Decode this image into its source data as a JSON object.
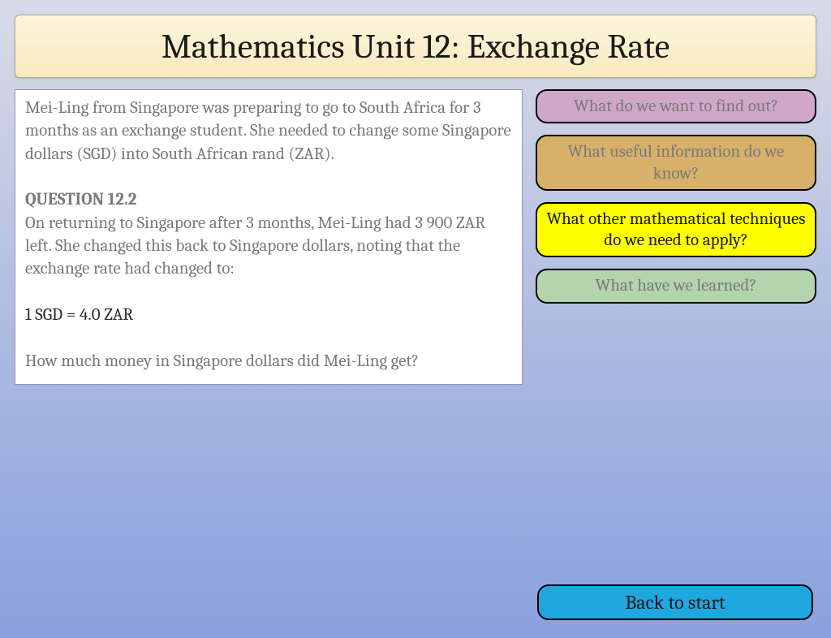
{
  "title": "Mathematics Unit 12: Exchange Rate",
  "problem": {
    "intro": "Mei-Ling from Singapore was preparing to go to South Africa for 3 months as an exchange student.  She needed to change some Singapore dollars (SGD) into South African rand (ZAR).",
    "question_label": "QUESTION 12.2",
    "body1": "On returning to Singapore after 3 months, Mei-Ling had 3 900 ZAR left.  She changed this back to Singapore dollars, noting that the exchange rate had changed to:",
    "rate": "1 SGD = 4.0 ZAR",
    "body2": "How much money in Singapore dollars did Mei-Ling get?"
  },
  "side_buttons": [
    {
      "label": "What do we want to find out?",
      "bg": "#d1a7c9",
      "active": false,
      "lines": 1
    },
    {
      "label": "What useful information do we know?",
      "bg": "#d8b06a",
      "active": false,
      "lines": 2
    },
    {
      "label": "What other mathematical techniques do we need to apply?",
      "bg": "#ffff00",
      "active": true,
      "lines": 3
    },
    {
      "label": "What have we learned?",
      "bg": "#b4d4ae",
      "active": false,
      "lines": 1
    }
  ],
  "back": {
    "label": "Back to start",
    "bg": "#1fa7e0"
  },
  "box_border": "#9a8fc0",
  "title_bg_top": "#fdf5dc",
  "title_bg_bot": "#f8e9bf"
}
